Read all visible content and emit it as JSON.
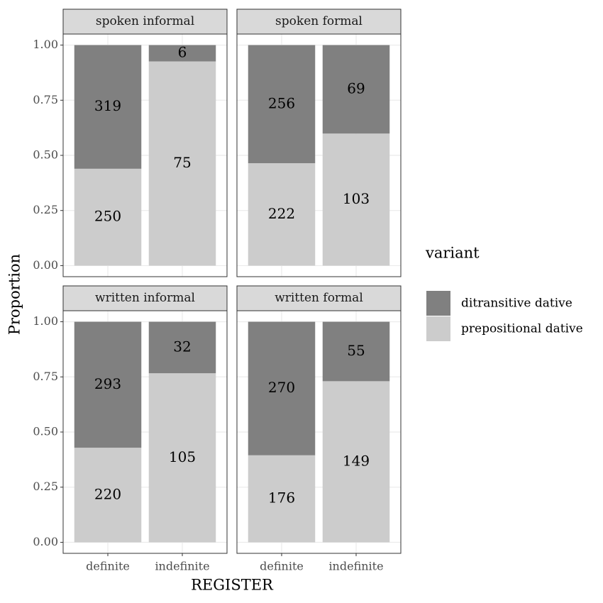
{
  "chart_data": {
    "type": "bar",
    "stacked": true,
    "normalize": true,
    "xlabel": "REGISTER",
    "ylabel": "Proportion",
    "ylim": [
      -0.05,
      1.05
    ],
    "yticks": [
      {
        "value": 0,
        "label": "0.00"
      },
      {
        "value": 0.25,
        "label": "0.25"
      },
      {
        "value": 0.5,
        "label": "0.50"
      },
      {
        "value": 0.75,
        "label": "0.75"
      },
      {
        "value": 1,
        "label": "1.00"
      }
    ],
    "grid": true,
    "legend": {
      "title": "variant",
      "position": "right"
    },
    "series": [
      {
        "name": "ditransitive dative",
        "color": "#808080"
      },
      {
        "name": "prepositional dative",
        "color": "#cccccc"
      }
    ],
    "facets": [
      {
        "title": "spoken informal",
        "categories": [
          "definite",
          "indefinite"
        ],
        "series": [
          {
            "values": [
              319,
              6
            ]
          },
          {
            "values": [
              250,
              75
            ]
          }
        ]
      },
      {
        "title": "spoken formal",
        "categories": [
          "definite",
          "indefinite"
        ],
        "series": [
          {
            "values": [
              256,
              69
            ]
          },
          {
            "values": [
              222,
              103
            ]
          }
        ]
      },
      {
        "title": "written informal",
        "categories": [
          "definite",
          "indefinite"
        ],
        "series": [
          {
            "values": [
              293,
              32
            ]
          },
          {
            "values": [
              220,
              105
            ]
          }
        ]
      },
      {
        "title": "written formal",
        "categories": [
          "definite",
          "indefinite"
        ],
        "series": [
          {
            "values": [
              270,
              55
            ]
          },
          {
            "values": [
              176,
              149
            ]
          }
        ]
      }
    ]
  }
}
